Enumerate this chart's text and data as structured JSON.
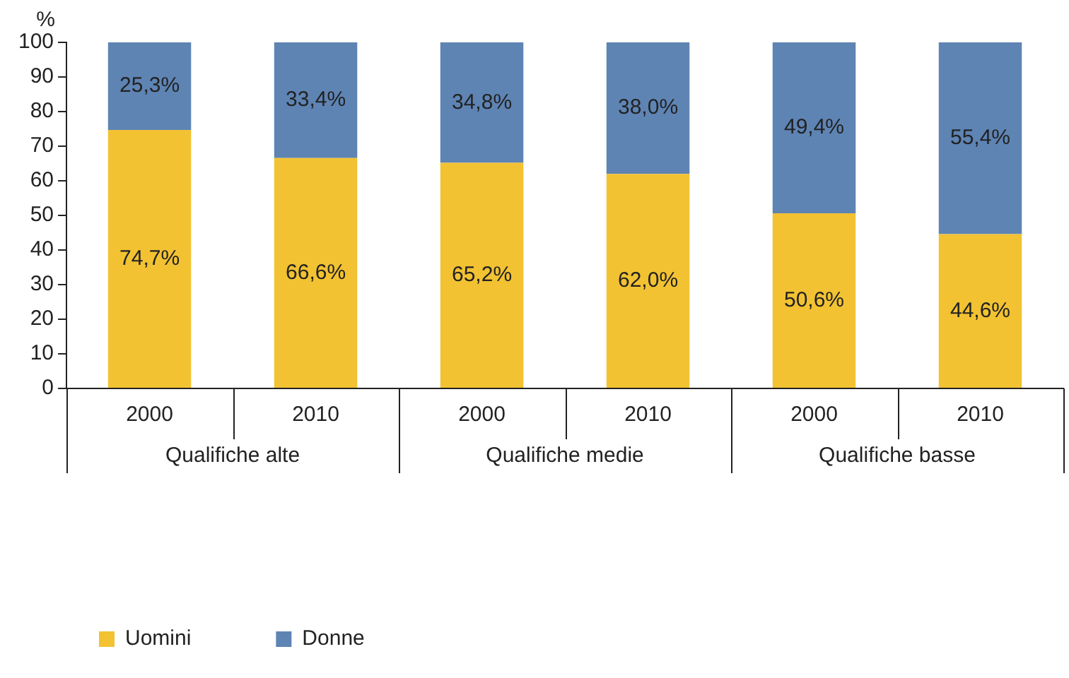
{
  "chart_data": {
    "type": "bar",
    "stacked": true,
    "ylabel": "%",
    "categories": [
      "2000",
      "2010",
      "2000",
      "2010",
      "2000",
      "2010"
    ],
    "series": [
      {
        "name": "Uomini",
        "color": "#f2c232",
        "values": [
          74.7,
          66.6,
          65.2,
          62.0,
          50.6,
          44.6
        ],
        "value_labels": [
          "74,7%",
          "66,6%",
          "65,2%",
          "62,0%",
          "50,6%",
          "44,6%"
        ]
      },
      {
        "name": "Donne",
        "color": "#5e84b4",
        "values": [
          25.3,
          33.4,
          34.8,
          38.0,
          49.4,
          55.4
        ],
        "value_labels": [
          "25,3%",
          "33,4%",
          "34,8%",
          "38,0%",
          "49,4%",
          "55,4%"
        ]
      }
    ],
    "annotations": [
      "Qualifiche alte",
      "Qualifiche medie",
      "Qualifiche basse"
    ],
    "ylim": [
      0,
      100
    ],
    "yticks": [
      0,
      10,
      20,
      30,
      40,
      50,
      60,
      70,
      80,
      90,
      100
    ],
    "grid": false,
    "legend": "bottom left"
  }
}
